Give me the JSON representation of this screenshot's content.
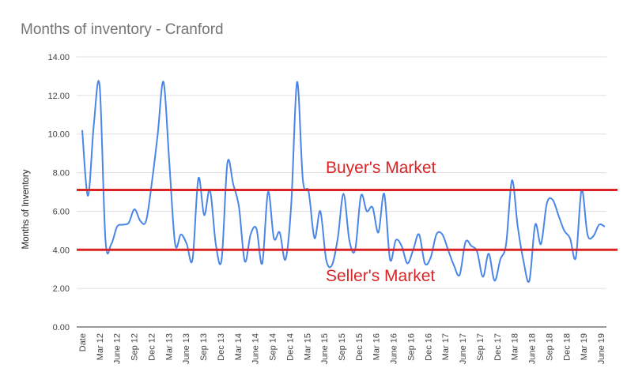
{
  "chart_data": {
    "type": "line",
    "title": "Months of inventory - Cranford",
    "ylabel": "Months of Inventory",
    "ylim": [
      0,
      14
    ],
    "yticks": [
      "0.00",
      "2.00",
      "4.00",
      "6.00",
      "8.00",
      "10.00",
      "12.00",
      "14.00"
    ],
    "x_tick_labels": [
      "Date",
      "Mar 12",
      "June 12",
      "Sep 12",
      "Dec 12",
      "Mar 13",
      "June 13",
      "Sep 13",
      "Dec 13",
      "Mar 14",
      "June 14",
      "Sep 14",
      "Dec 14",
      "Mar 15",
      "June 15",
      "Sep 15",
      "Dec 15",
      "Mar 16",
      "June 16",
      "Sep 16",
      "Dec 16",
      "Mar 17",
      "June 17",
      "Sep 17",
      "Dec 17",
      "Mar 18",
      "June 18",
      "Sep 18",
      "Dec 18",
      "Mar 19",
      "June 19"
    ],
    "grid": true,
    "legend": "none",
    "series": [
      {
        "color": "#4a86e8",
        "values": [
          10.2,
          6.8,
          10.5,
          12.5,
          4.5,
          4.3,
          5.2,
          5.3,
          5.4,
          6.1,
          5.5,
          5.5,
          7.5,
          10.0,
          12.7,
          8.5,
          4.3,
          4.8,
          4.3,
          3.5,
          7.7,
          5.8,
          7.1,
          4.3,
          3.5,
          8.5,
          7.4,
          6.2,
          3.4,
          4.8,
          5.1,
          3.3,
          7.0,
          4.6,
          4.9,
          3.5,
          6.4,
          12.7,
          7.6,
          7.0,
          4.6,
          6.0,
          3.5,
          3.2,
          4.6,
          6.9,
          4.5,
          4.0,
          6.8,
          6.0,
          6.2,
          4.9,
          6.9,
          3.5,
          4.5,
          4.2,
          3.3,
          4.0,
          4.8,
          3.3,
          3.6,
          4.8,
          4.8,
          4.0,
          3.2,
          2.7,
          4.4,
          4.2,
          3.9,
          2.6,
          3.8,
          2.4,
          3.5,
          4.3,
          7.6,
          5.2,
          3.4,
          2.4,
          5.3,
          4.3,
          6.4,
          6.6,
          5.8,
          5.0,
          4.6,
          3.6,
          7.1,
          4.8,
          4.7,
          5.3,
          5.2
        ]
      }
    ],
    "reference_lines": [
      {
        "value": 7.1,
        "color": "#d92525"
      },
      {
        "value": 4.0,
        "color": "#d92525"
      }
    ],
    "annotations": [
      "Buyer's Market",
      "Seller's Market"
    ]
  }
}
